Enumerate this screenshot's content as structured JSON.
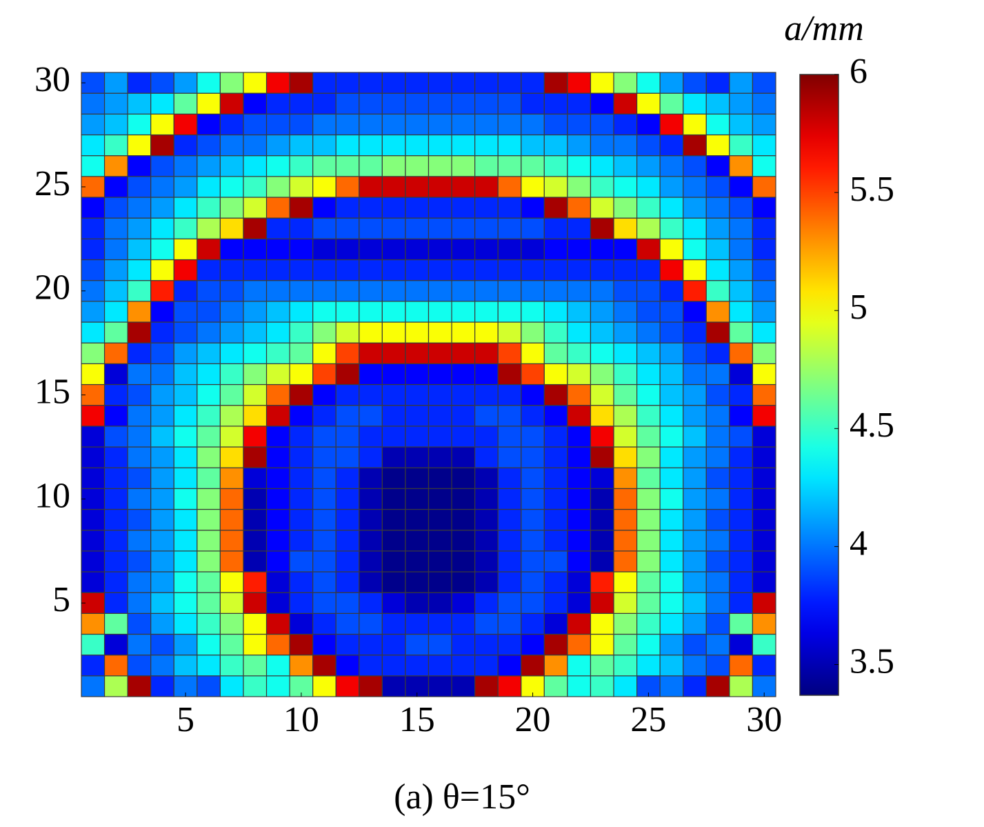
{
  "chart_data": {
    "type": "heatmap",
    "caption": "(a) θ=15°",
    "colorbar_label": "a/mm",
    "colormap": "jet",
    "x": [
      1,
      2,
      3,
      4,
      5,
      6,
      7,
      8,
      9,
      10,
      11,
      12,
      13,
      14,
      15,
      16,
      17,
      18,
      19,
      20,
      21,
      22,
      23,
      24,
      25,
      26,
      27,
      28,
      29,
      30
    ],
    "y": [
      1,
      2,
      3,
      4,
      5,
      6,
      7,
      8,
      9,
      10,
      11,
      12,
      13,
      14,
      15,
      16,
      17,
      18,
      19,
      20,
      21,
      22,
      23,
      24,
      25,
      26,
      27,
      28,
      29,
      30
    ],
    "xlim": [
      0.5,
      30.5
    ],
    "ylim": [
      0.5,
      30.5
    ],
    "xticks": [
      5,
      10,
      15,
      20,
      25,
      30
    ],
    "yticks": [
      5,
      10,
      15,
      20,
      25,
      30
    ],
    "clim": [
      3.37,
      6
    ],
    "cticks": [
      3.5,
      4,
      4.5,
      5,
      5.5,
      6
    ],
    "z": [
      [
        4.0,
        4.8,
        5.9,
        3.8,
        4.0,
        3.9,
        4.3,
        4.5,
        4.4,
        4.6,
        5.0,
        5.7,
        5.9,
        3.5,
        3.5,
        3.5,
        3.5,
        5.9,
        5.7,
        5.0,
        4.6,
        4.4,
        4.5,
        4.3,
        3.9,
        4.0,
        3.8,
        5.9,
        4.8,
        4.0
      ],
      [
        3.8,
        5.4,
        3.9,
        4.0,
        4.2,
        4.3,
        4.5,
        4.6,
        4.4,
        5.3,
        5.9,
        3.7,
        3.8,
        3.8,
        3.8,
        3.8,
        3.8,
        3.8,
        3.7,
        5.9,
        5.3,
        4.4,
        4.6,
        4.5,
        4.3,
        4.2,
        4.0,
        3.9,
        5.4,
        3.8
      ],
      [
        4.5,
        3.6,
        4.0,
        3.9,
        4.1,
        4.4,
        4.6,
        5.0,
        5.4,
        5.9,
        3.7,
        3.8,
        3.8,
        3.8,
        3.9,
        3.9,
        3.8,
        3.8,
        3.8,
        3.7,
        5.9,
        5.4,
        5.0,
        4.6,
        4.4,
        4.1,
        3.9,
        4.0,
        3.6,
        4.5
      ],
      [
        5.3,
        4.6,
        3.9,
        4.1,
        4.3,
        4.5,
        4.7,
        5.0,
        5.8,
        3.6,
        3.8,
        3.9,
        3.9,
        3.8,
        3.8,
        3.8,
        3.8,
        3.9,
        3.9,
        3.8,
        3.6,
        5.8,
        5.0,
        4.7,
        4.5,
        4.3,
        4.1,
        3.9,
        4.6,
        5.3
      ],
      [
        5.8,
        3.8,
        4.0,
        4.2,
        4.4,
        4.6,
        4.9,
        5.8,
        3.6,
        3.8,
        3.9,
        3.9,
        3.8,
        3.6,
        3.5,
        3.5,
        3.6,
        3.8,
        3.9,
        3.9,
        3.8,
        3.6,
        5.8,
        4.9,
        4.6,
        4.4,
        4.2,
        4.0,
        3.8,
        5.8
      ],
      [
        3.6,
        3.8,
        4.0,
        4.1,
        4.4,
        4.6,
        5.0,
        5.6,
        3.6,
        3.8,
        3.9,
        3.8,
        3.5,
        3.4,
        3.4,
        3.4,
        3.4,
        3.5,
        3.8,
        3.9,
        3.8,
        3.6,
        5.6,
        5.0,
        4.6,
        4.4,
        4.1,
        4.0,
        3.8,
        3.6
      ],
      [
        3.6,
        3.8,
        3.9,
        4.1,
        4.3,
        4.7,
        5.4,
        3.5,
        3.7,
        3.9,
        3.9,
        3.8,
        3.5,
        3.4,
        3.4,
        3.4,
        3.4,
        3.5,
        3.8,
        3.9,
        3.9,
        3.7,
        3.5,
        5.4,
        4.7,
        4.3,
        4.1,
        3.9,
        3.8,
        3.6
      ],
      [
        3.6,
        3.8,
        4.0,
        4.1,
        4.3,
        4.7,
        5.4,
        3.5,
        3.7,
        3.8,
        3.9,
        3.8,
        3.5,
        3.4,
        3.4,
        3.4,
        3.4,
        3.5,
        3.8,
        3.9,
        3.8,
        3.7,
        3.5,
        5.4,
        4.7,
        4.3,
        4.1,
        4.0,
        3.8,
        3.6
      ],
      [
        3.6,
        3.8,
        3.9,
        4.1,
        4.3,
        4.7,
        5.4,
        3.5,
        3.7,
        3.8,
        3.9,
        3.8,
        3.5,
        3.4,
        3.4,
        3.4,
        3.4,
        3.5,
        3.8,
        3.9,
        3.8,
        3.7,
        3.5,
        5.4,
        4.7,
        4.3,
        4.1,
        3.9,
        3.8,
        3.6
      ],
      [
        3.6,
        3.8,
        4.0,
        4.1,
        4.4,
        4.7,
        5.4,
        3.5,
        3.7,
        3.8,
        3.9,
        3.8,
        3.5,
        3.4,
        3.4,
        3.4,
        3.4,
        3.5,
        3.8,
        3.9,
        3.8,
        3.7,
        3.5,
        5.4,
        4.7,
        4.4,
        4.1,
        4.0,
        3.8,
        3.6
      ],
      [
        3.6,
        3.8,
        3.9,
        4.1,
        4.3,
        4.6,
        5.3,
        3.6,
        3.7,
        3.8,
        3.9,
        3.8,
        3.5,
        3.4,
        3.4,
        3.4,
        3.4,
        3.5,
        3.8,
        3.9,
        3.8,
        3.7,
        3.6,
        5.3,
        4.6,
        4.3,
        4.1,
        3.9,
        3.8,
        3.6
      ],
      [
        3.6,
        3.8,
        4.0,
        4.1,
        4.3,
        4.7,
        5.1,
        5.9,
        3.7,
        3.8,
        3.9,
        3.9,
        3.8,
        3.5,
        3.5,
        3.5,
        3.5,
        3.8,
        3.9,
        3.9,
        3.8,
        3.7,
        5.9,
        5.1,
        4.7,
        4.3,
        4.1,
        4.0,
        3.8,
        3.6
      ],
      [
        3.6,
        3.9,
        4.0,
        4.2,
        4.4,
        4.6,
        4.9,
        5.7,
        3.7,
        3.8,
        3.9,
        3.9,
        3.8,
        3.8,
        3.8,
        3.8,
        3.8,
        3.8,
        3.9,
        3.9,
        3.8,
        3.7,
        5.7,
        4.9,
        4.6,
        4.4,
        4.2,
        4.0,
        3.9,
        3.6
      ],
      [
        5.7,
        3.7,
        4.0,
        4.1,
        4.3,
        4.5,
        4.8,
        5.1,
        5.8,
        3.7,
        3.8,
        3.9,
        3.9,
        3.8,
        3.8,
        3.8,
        3.8,
        3.9,
        3.9,
        3.8,
        3.7,
        5.8,
        5.1,
        4.8,
        4.5,
        4.3,
        4.1,
        4.0,
        3.7,
        5.7
      ],
      [
        5.4,
        3.8,
        3.9,
        4.1,
        4.2,
        4.4,
        4.6,
        4.9,
        5.4,
        5.9,
        3.7,
        3.8,
        3.8,
        3.8,
        3.8,
        3.8,
        3.8,
        3.8,
        3.8,
        3.7,
        5.9,
        5.4,
        4.9,
        4.6,
        4.4,
        4.2,
        4.1,
        3.9,
        3.8,
        5.4
      ],
      [
        5.0,
        3.6,
        4.0,
        4.0,
        4.2,
        4.3,
        4.5,
        4.7,
        4.9,
        5.0,
        5.5,
        5.9,
        3.7,
        3.7,
        3.7,
        3.7,
        3.7,
        3.7,
        5.9,
        5.5,
        5.0,
        4.9,
        4.7,
        4.5,
        4.3,
        4.2,
        4.0,
        4.0,
        3.6,
        5.0
      ],
      [
        4.7,
        5.4,
        3.8,
        3.9,
        4.1,
        4.2,
        4.3,
        4.4,
        4.5,
        4.6,
        5.0,
        5.5,
        5.8,
        5.8,
        5.8,
        5.8,
        5.8,
        5.8,
        5.5,
        5.0,
        4.6,
        4.5,
        4.4,
        4.3,
        4.2,
        4.1,
        3.9,
        3.8,
        5.4,
        4.7
      ],
      [
        4.3,
        4.6,
        5.9,
        3.8,
        3.9,
        4.0,
        4.1,
        4.2,
        4.3,
        4.5,
        4.7,
        4.9,
        5.0,
        5.0,
        5.0,
        5.0,
        5.0,
        5.0,
        4.9,
        4.7,
        4.5,
        4.3,
        4.2,
        4.1,
        4.0,
        3.9,
        3.8,
        5.9,
        4.6,
        4.3
      ],
      [
        4.1,
        4.3,
        5.3,
        3.7,
        3.9,
        3.9,
        4.0,
        4.1,
        4.2,
        4.3,
        4.4,
        4.4,
        4.4,
        4.4,
        4.4,
        4.4,
        4.4,
        4.4,
        4.4,
        4.4,
        4.3,
        4.2,
        4.1,
        4.0,
        3.9,
        3.9,
        3.7,
        5.3,
        4.3,
        4.1
      ],
      [
        4.0,
        4.2,
        4.5,
        5.6,
        3.8,
        3.9,
        3.9,
        4.0,
        4.0,
        4.0,
        4.0,
        4.0,
        4.0,
        4.0,
        4.0,
        4.0,
        4.0,
        4.0,
        4.0,
        4.0,
        4.0,
        4.0,
        4.0,
        3.9,
        3.9,
        3.8,
        5.6,
        4.5,
        4.2,
        4.0
      ],
      [
        3.9,
        4.1,
        4.3,
        5.0,
        5.7,
        3.8,
        3.8,
        3.8,
        3.8,
        3.8,
        3.8,
        3.8,
        3.8,
        3.8,
        3.8,
        3.8,
        3.8,
        3.8,
        3.8,
        3.8,
        3.8,
        3.8,
        3.8,
        3.8,
        3.8,
        5.7,
        5.0,
        4.3,
        4.1,
        3.9
      ],
      [
        3.8,
        4.0,
        4.2,
        4.4,
        5.0,
        5.8,
        3.7,
        3.7,
        3.7,
        3.7,
        3.6,
        3.6,
        3.6,
        3.6,
        3.6,
        3.6,
        3.6,
        3.6,
        3.6,
        3.6,
        3.7,
        3.7,
        3.7,
        3.7,
        5.8,
        5.0,
        4.4,
        4.2,
        4.0,
        3.8
      ],
      [
        3.8,
        4.0,
        4.1,
        4.3,
        4.5,
        4.8,
        5.1,
        5.9,
        3.8,
        3.8,
        3.9,
        3.9,
        3.9,
        3.9,
        3.9,
        3.9,
        3.9,
        3.9,
        3.9,
        3.9,
        3.8,
        3.8,
        5.9,
        5.1,
        4.8,
        4.5,
        4.3,
        4.1,
        4.0,
        3.8
      ],
      [
        3.7,
        3.9,
        4.0,
        4.1,
        4.3,
        4.5,
        4.7,
        4.9,
        5.4,
        5.9,
        3.7,
        3.8,
        3.8,
        3.8,
        3.8,
        3.8,
        3.8,
        3.8,
        3.8,
        3.7,
        5.9,
        5.4,
        4.9,
        4.7,
        4.5,
        4.3,
        4.1,
        4.0,
        3.9,
        3.7
      ],
      [
        5.4,
        3.7,
        3.9,
        4.0,
        4.1,
        4.3,
        4.4,
        4.5,
        4.7,
        4.9,
        5.0,
        5.4,
        5.8,
        5.8,
        5.8,
        5.8,
        5.8,
        5.8,
        5.4,
        5.0,
        4.9,
        4.7,
        4.5,
        4.4,
        4.3,
        4.1,
        4.0,
        3.9,
        3.7,
        5.4
      ],
      [
        4.4,
        5.3,
        3.7,
        3.9,
        4.0,
        4.1,
        4.2,
        4.3,
        4.4,
        4.5,
        4.6,
        4.6,
        4.6,
        4.7,
        4.7,
        4.7,
        4.7,
        4.6,
        4.6,
        4.6,
        4.5,
        4.4,
        4.3,
        4.2,
        4.1,
        4.0,
        3.9,
        3.7,
        5.3,
        4.4
      ],
      [
        4.3,
        4.5,
        5.0,
        5.9,
        3.8,
        3.9,
        4.0,
        4.0,
        4.1,
        4.2,
        4.2,
        4.3,
        4.3,
        4.3,
        4.3,
        4.3,
        4.3,
        4.3,
        4.3,
        4.2,
        4.2,
        4.1,
        4.0,
        4.0,
        3.9,
        3.8,
        5.9,
        5.0,
        4.5,
        4.3
      ],
      [
        4.1,
        4.2,
        4.4,
        5.0,
        5.7,
        3.7,
        3.8,
        3.9,
        3.9,
        3.9,
        4.0,
        4.0,
        4.0,
        4.0,
        4.0,
        4.0,
        4.0,
        4.0,
        4.0,
        4.0,
        3.9,
        3.9,
        3.9,
        3.8,
        3.7,
        5.7,
        5.0,
        4.4,
        4.2,
        4.1
      ],
      [
        4.0,
        4.1,
        4.2,
        4.3,
        4.6,
        5.0,
        5.8,
        3.7,
        3.8,
        3.8,
        3.8,
        3.9,
        3.9,
        3.9,
        3.9,
        3.9,
        3.9,
        3.9,
        3.9,
        3.8,
        3.8,
        3.8,
        3.7,
        5.8,
        5.0,
        4.6,
        4.3,
        4.2,
        4.1,
        4.0
      ],
      [
        3.9,
        4.1,
        3.8,
        3.9,
        4.1,
        4.4,
        4.7,
        5.0,
        5.7,
        5.9,
        3.8,
        3.8,
        3.8,
        3.8,
        3.8,
        3.8,
        3.8,
        3.8,
        3.8,
        3.8,
        5.9,
        5.7,
        5.0,
        4.7,
        4.4,
        4.1,
        3.9,
        3.8,
        4.1,
        3.9
      ]
    ]
  }
}
